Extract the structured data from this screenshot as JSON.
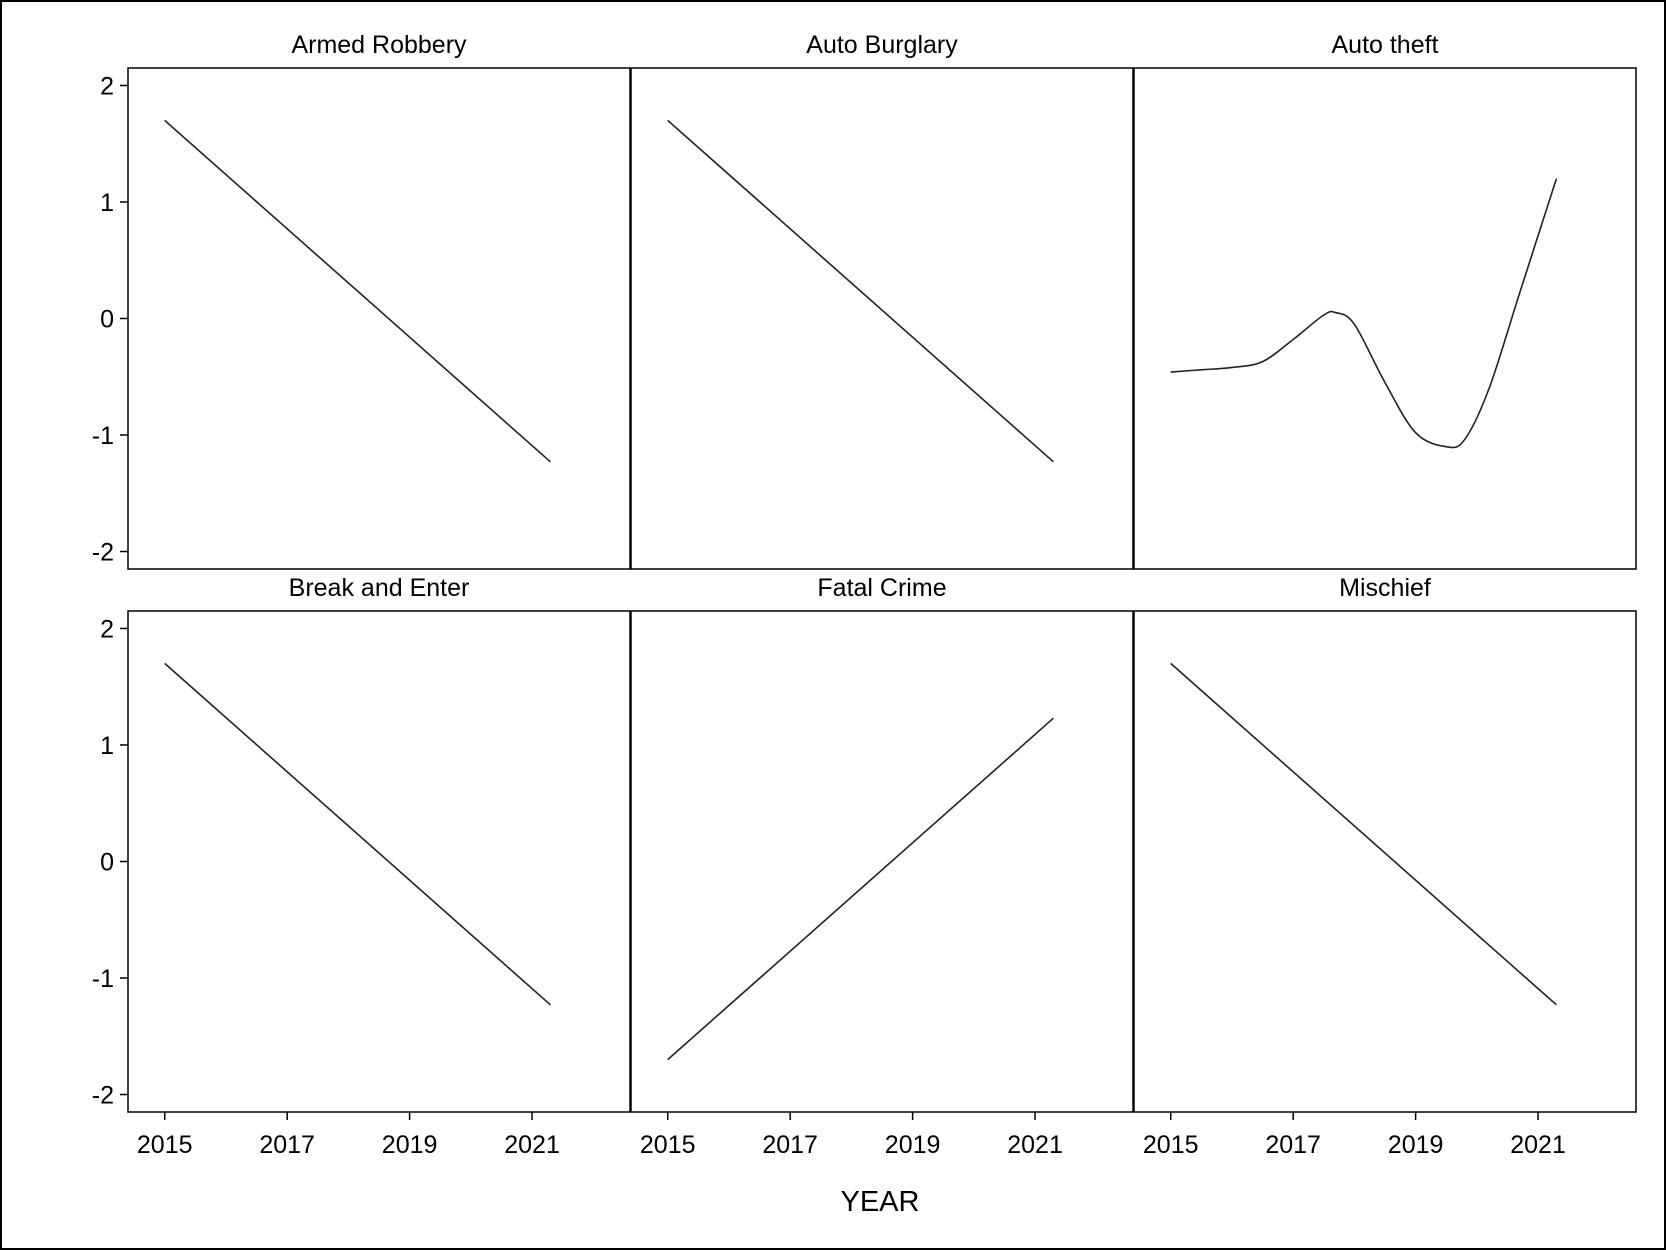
{
  "chart_data": {
    "type": "line",
    "layout": "2 rows x 3 columns panel grid",
    "xlabel": "YEAR",
    "ylabel": "",
    "xlim": [
      2014.4,
      2022.6
    ],
    "ylim": [
      -2.15,
      2.15
    ],
    "xticks": [
      "2015",
      "2017",
      "2019",
      "2021"
    ],
    "xtick_values": [
      2015,
      2017,
      2019,
      2021
    ],
    "yticks": [
      "2",
      "1",
      "0",
      "-1",
      "-2"
    ],
    "ytick_values": [
      2,
      1,
      0,
      -1,
      -2
    ],
    "grid": false,
    "legend": "none",
    "line_color": "#222222",
    "panels": [
      {
        "title": "Armed Robbery",
        "x": [
          2015,
          2021.3
        ],
        "values": [
          1.7,
          -1.23
        ]
      },
      {
        "title": "Auto Burglary",
        "x": [
          2015,
          2021.3
        ],
        "values": [
          1.7,
          -1.23
        ]
      },
      {
        "title": "Auto theft",
        "x": [
          2015,
          2015.5,
          2016,
          2016.5,
          2017,
          2017.5,
          2017.7,
          2018,
          2018.5,
          2019,
          2019.5,
          2019.8,
          2020.2,
          2020.7,
          2021.3
        ],
        "values": [
          -0.46,
          -0.44,
          -0.42,
          -0.37,
          -0.18,
          0.03,
          0.05,
          -0.05,
          -0.55,
          -0.98,
          -1.1,
          -1.04,
          -0.6,
          0.22,
          1.2
        ]
      },
      {
        "title": "Break and Enter",
        "x": [
          2015,
          2021.3
        ],
        "values": [
          1.7,
          -1.23
        ]
      },
      {
        "title": "Fatal Crime",
        "x": [
          2015,
          2021.3
        ],
        "values": [
          -1.7,
          1.23
        ]
      },
      {
        "title": "Mischief",
        "x": [
          2015,
          2021.3
        ],
        "values": [
          1.7,
          -1.23
        ]
      }
    ]
  }
}
